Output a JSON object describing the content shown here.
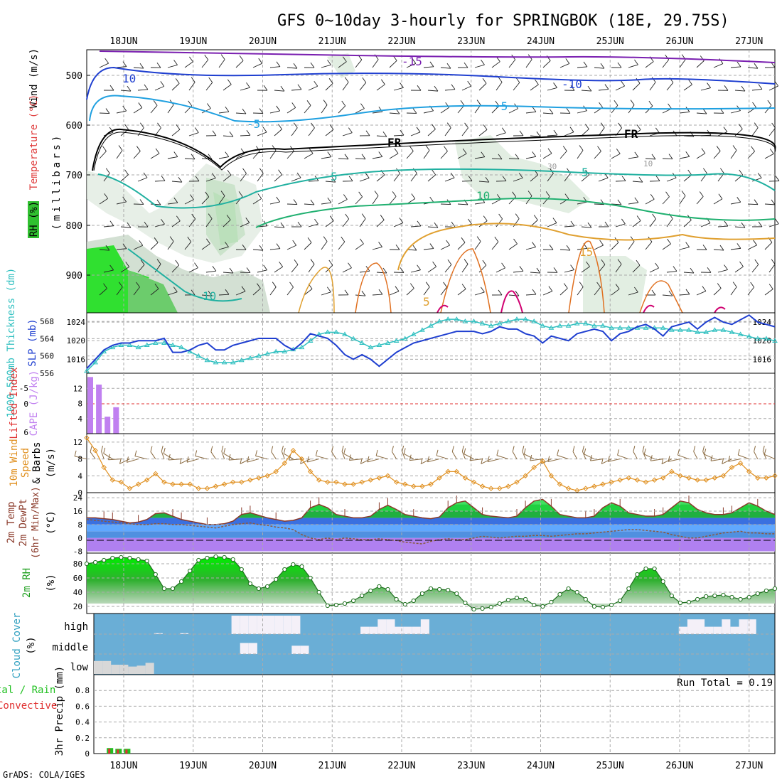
{
  "title": "GFS 0~10day 3-hourly for SPRINGBOK (18E, 29.75S)",
  "credit": "GrADS: COLA/IGES",
  "dates": [
    "18JUN",
    "19JUN",
    "20JUN",
    "21JUN",
    "22JUN",
    "23JUN",
    "24JUN",
    "25JUN",
    "26JUN",
    "27JUN"
  ],
  "colors": {
    "grid": "#aaaaaa",
    "temp_cold": "#7a1fb0",
    "temp_blue": "#1f3fd0",
    "temp_lightblue": "#1fa0e0",
    "temp_teal": "#20b0a0",
    "temp_green": "#20b070",
    "temp_orange": "#e0a030",
    "temp_dark_orange": "#e07020",
    "temp_red": "#d00070",
    "freezing": "#000000",
    "slp": "#1f3fd0",
    "thickness": "#30c0c0",
    "cape": "#c080f0",
    "lifted": "#e03030",
    "wind10": "#e09020",
    "barb": "#8a6a40",
    "rh_green": "#20c020",
    "cloud_bg": "#6aaed6",
    "cloud_fill": "#f4f0f8"
  },
  "panels": {
    "profile": {
      "ylabels": [
        {
          "text": "Wind (m/s)",
          "color": "#000000"
        },
        {
          "text": "Temperature (°C)",
          "color": "#e04040"
        },
        {
          "text": "RH (%)",
          "color": "#20a020"
        }
      ],
      "axis_unit": "(millibars)",
      "yticks": [
        "500",
        "600",
        "700",
        "800",
        "900"
      ],
      "contour_labels": [
        {
          "text": "-15",
          "color": "#7a1fb0"
        },
        {
          "text": "10",
          "color": "#1f3fd0"
        },
        {
          "text": "-10",
          "color": "#1f3fd0"
        },
        {
          "text": "-5",
          "color": "#1fa0e0"
        },
        {
          "text": "-5",
          "color": "#1fa0e0"
        },
        {
          "text": "FR",
          "color": "#000000"
        },
        {
          "text": "FR",
          "color": "#000000"
        },
        {
          "text": "5",
          "color": "#20b0a0"
        },
        {
          "text": "5",
          "color": "#20b0a0"
        },
        {
          "text": "10",
          "color": "#20b070"
        },
        {
          "text": "10",
          "color": "#20b0a0"
        },
        {
          "text": "15",
          "color": "#e0a030"
        },
        {
          "text": "5",
          "color": "#e0a030"
        },
        {
          "text": "30",
          "color": "#999999"
        },
        {
          "text": "10",
          "color": "#999999"
        }
      ]
    },
    "slp": {
      "ylabel_left": "1000-500mb Thickness (dm)",
      "ylabel_right": "SLP (mb)",
      "thickness_ticks": [
        "568",
        "564",
        "560",
        "556"
      ],
      "slp_ticks": [
        "1024",
        "1020",
        "1016"
      ]
    },
    "cape": {
      "ylabel_left": "Lifted Index",
      "ylabel_right": "CAPE (J/kg)",
      "li_ticks": [
        "-5",
        "0",
        "6"
      ],
      "cape_ticks": [
        "12",
        "8",
        "4"
      ],
      "li_extra_ticks": [
        "4",
        "4"
      ]
    },
    "wind": {
      "ylabel": "10m Wind Speed & Barbs",
      "unit": "(m/s)",
      "yticks": [
        "12",
        "8",
        "4",
        "0"
      ]
    },
    "temp": {
      "ylabel": "2m Temp 2m DewPt (6hr Min/Max)",
      "unit": "(°C)",
      "yticks": [
        "24",
        "16",
        "8",
        "0",
        "-8"
      ]
    },
    "rh": {
      "ylabel": "2m RH",
      "unit": "(%)",
      "yticks": [
        "80",
        "60",
        "40",
        "20"
      ]
    },
    "cloud": {
      "ylabel": "Cloud Cover",
      "unit": "(%)",
      "levels": [
        "high",
        "middle",
        "low"
      ]
    },
    "precip": {
      "ylabel_left": "tal / Rain",
      "ylabel_left2": "Convective",
      "ylabel": "3hr Precip (mm)",
      "yticks": [
        "0.8",
        "0.6",
        "0.4",
        "0.2",
        "0"
      ],
      "run_total": "Run Total = 0.19"
    }
  },
  "chart_data": [
    {
      "type": "line",
      "name": "sea level pressure",
      "unit": "mb",
      "ylim": [
        1013,
        1026
      ],
      "x": [
        0,
        1,
        2,
        3,
        4,
        5,
        6,
        7,
        8,
        9,
        10,
        11,
        12,
        13,
        14,
        15,
        16,
        17,
        18,
        19,
        20,
        21,
        22,
        23,
        24,
        25,
        26,
        27,
        28,
        29,
        30,
        31,
        32,
        33,
        34,
        35,
        36,
        37,
        38,
        39,
        40,
        41,
        42,
        43,
        44,
        45,
        46,
        47,
        48,
        49,
        50,
        51,
        52,
        53,
        54,
        55,
        56,
        57,
        58,
        59,
        60,
        61,
        62,
        63,
        64,
        65,
        66,
        67,
        68,
        69,
        70,
        71,
        72,
        73,
        74,
        75,
        76,
        77,
        78,
        79,
        80
      ],
      "values": [
        1014,
        1016,
        1018,
        1019,
        1019.5,
        1019.5,
        1020,
        1020,
        1020,
        1020.5,
        1017.5,
        1017.5,
        1018,
        1019,
        1019.5,
        1018,
        1018,
        1019,
        1019.5,
        1020,
        1020.5,
        1020.5,
        1020.5,
        1019,
        1018,
        1019.5,
        1021.5,
        1021,
        1020.5,
        1019,
        1017,
        1016,
        1017,
        1016,
        1014.5,
        1016,
        1017.5,
        1018.5,
        1019.5,
        1020,
        1020.5,
        1021,
        1021.5,
        1022,
        1022,
        1022,
        1021.5,
        1022,
        1023,
        1022.5,
        1022.5,
        1021.5,
        1021,
        1019.5,
        1021,
        1020.5,
        1020,
        1021.5,
        1022,
        1022.5,
        1022,
        1020,
        1021.5,
        1022,
        1023,
        1023.5,
        1022.5,
        1021,
        1023,
        1023.5,
        1024,
        1022.5,
        1024,
        1025,
        1024,
        1023.5,
        1024.5,
        1025.5,
        1024,
        1023.5,
        1023
      ]
    },
    {
      "type": "line",
      "name": "1000-500mb thickness",
      "unit": "dm",
      "ylim": [
        556,
        570
      ],
      "x": [
        0,
        1,
        2,
        3,
        4,
        5,
        6,
        7,
        8,
        9,
        10,
        11,
        12,
        13,
        14,
        15,
        16,
        17,
        18,
        19,
        20,
        21,
        22,
        23,
        24,
        25,
        26,
        27,
        28,
        29,
        30,
        31,
        32,
        33,
        34,
        35,
        36,
        37,
        38,
        39,
        40,
        41,
        42,
        43,
        44,
        45,
        46,
        47,
        48,
        49,
        50,
        51,
        52,
        53,
        54,
        55,
        56,
        57,
        58,
        59,
        60,
        61,
        62,
        63,
        64,
        65,
        66,
        67,
        68,
        69,
        70,
        71,
        72,
        73,
        74,
        75,
        76,
        77,
        78,
        79,
        80
      ],
      "values": [
        556.5,
        558.5,
        561,
        562,
        562.5,
        562.5,
        562,
        562.5,
        563,
        563,
        562.5,
        562,
        561,
        560,
        559,
        558.5,
        558.5,
        558.5,
        559,
        559.5,
        560,
        560.5,
        561,
        561,
        561.5,
        562,
        563.5,
        565,
        565.5,
        565.5,
        565,
        564,
        563,
        562,
        562.5,
        563,
        563.5,
        564,
        565,
        566,
        567,
        568,
        568.5,
        568.5,
        568,
        568,
        567.5,
        567,
        567.5,
        568,
        568.5,
        568.5,
        568,
        567,
        566.5,
        567,
        567,
        567.5,
        567.5,
        567,
        567,
        566.5,
        566.5,
        566.5,
        566.5,
        566.5,
        566.5,
        566.5,
        566,
        566,
        566,
        565.5,
        565.5,
        566,
        566,
        565.5,
        565,
        564.5,
        564,
        564,
        563.5
      ]
    },
    {
      "type": "bar",
      "name": "CAPE",
      "unit": "J/kg",
      "ylim": [
        0,
        16
      ],
      "x": [
        0,
        1,
        2,
        3
      ],
      "values": [
        15,
        13,
        4.5,
        7
      ]
    },
    {
      "type": "line",
      "name": "10m wind speed",
      "unit": "m/s",
      "ylim": [
        0,
        14
      ],
      "x": [
        0,
        1,
        2,
        3,
        4,
        5,
        6,
        7,
        8,
        9,
        10,
        11,
        12,
        13,
        14,
        15,
        16,
        17,
        18,
        19,
        20,
        21,
        22,
        23,
        24,
        25,
        26,
        27,
        28,
        29,
        30,
        31,
        32,
        33,
        34,
        35,
        36,
        37,
        38,
        39,
        40,
        41,
        42,
        43,
        44,
        45,
        46,
        47,
        48,
        49,
        50,
        51,
        52,
        53,
        54,
        55,
        56,
        57,
        58,
        59,
        60,
        61,
        62,
        63,
        64,
        65,
        66,
        67,
        68,
        69,
        70,
        71,
        72,
        73,
        74,
        75,
        76,
        77,
        78,
        79,
        80
      ],
      "values": [
        13,
        10,
        6,
        3,
        2.5,
        1,
        2,
        3,
        4.5,
        2.5,
        2,
        2,
        2,
        1,
        1,
        1.5,
        2,
        2.5,
        2.5,
        3,
        3.5,
        4,
        5,
        7,
        10,
        8,
        5,
        3,
        2.5,
        2.5,
        2,
        2,
        2.5,
        3,
        3.5,
        4,
        2.5,
        2,
        1.5,
        1.5,
        2,
        3.5,
        5,
        5,
        3.5,
        2.5,
        1.5,
        1,
        1,
        1.5,
        2.5,
        4,
        6,
        7.5,
        4,
        2,
        1,
        0.5,
        1,
        1.5,
        2,
        2.5,
        3,
        3.5,
        3,
        2.5,
        3,
        3.5,
        5,
        4,
        3.5,
        3,
        3,
        3.5,
        4,
        6,
        7,
        5,
        3.5,
        3.5,
        4
      ]
    },
    {
      "type": "area",
      "name": "2m temperature",
      "unit": "°C",
      "ylim": [
        -9,
        27
      ],
      "x": [
        0,
        1,
        2,
        3,
        4,
        5,
        6,
        7,
        8,
        9,
        10,
        11,
        12,
        13,
        14,
        15,
        16,
        17,
        18,
        19,
        20,
        21,
        22,
        23,
        24,
        25,
        26,
        27,
        28,
        29,
        30,
        31,
        32,
        33,
        34,
        35,
        36,
        37,
        38,
        39,
        40,
        41,
        42,
        43,
        44,
        45,
        46,
        47,
        48,
        49,
        50,
        51,
        52,
        53,
        54,
        55,
        56,
        57,
        58,
        59,
        60,
        61,
        62,
        63,
        64,
        65,
        66,
        67,
        68,
        69,
        70,
        71,
        72,
        73,
        74,
        75,
        76,
        77,
        78,
        79,
        80
      ],
      "values": [
        12,
        12,
        11.5,
        11,
        10,
        9,
        9.5,
        11,
        14.5,
        15,
        13,
        11,
        10,
        9,
        8,
        8,
        8.5,
        10,
        14,
        15,
        13.5,
        12,
        11,
        10,
        10.5,
        12,
        18,
        20,
        18,
        14,
        13,
        12,
        12,
        13,
        17,
        19.5,
        17,
        14,
        13,
        12,
        11.5,
        12.5,
        18,
        21,
        22,
        18,
        14,
        13,
        12.5,
        12,
        13,
        18,
        22,
        23,
        19,
        14,
        13,
        12,
        12,
        13,
        18,
        21,
        19,
        15,
        14,
        13,
        13,
        14,
        18,
        22,
        21,
        17,
        15,
        14,
        14,
        15,
        18,
        21,
        19,
        16,
        14
      ]
    },
    {
      "type": "line",
      "name": "2m dew point",
      "unit": "°C",
      "ylim": [
        -9,
        27
      ],
      "x": [
        0,
        1,
        2,
        3,
        4,
        5,
        6,
        7,
        8,
        9,
        10,
        11,
        12,
        13,
        14,
        15,
        16,
        17,
        18,
        19,
        20,
        21,
        22,
        23,
        24,
        25,
        26,
        27,
        28,
        29,
        30,
        31,
        32,
        33,
        34,
        35,
        36,
        37,
        38,
        39,
        40,
        41,
        42,
        43,
        44,
        45,
        46,
        47,
        48,
        49,
        50,
        51,
        52,
        53,
        54,
        55,
        56,
        57,
        58,
        59,
        60,
        61,
        62,
        63,
        64,
        65,
        66,
        67,
        68,
        69,
        70,
        71,
        72,
        73,
        74,
        75,
        76,
        77,
        78,
        79,
        80
      ],
      "values": [
        11,
        10.5,
        10,
        9.5,
        9,
        8.5,
        8,
        8,
        8.5,
        8.5,
        8,
        8,
        7.5,
        7,
        6.5,
        6,
        7,
        8,
        8.5,
        9,
        8,
        7.5,
        6.5,
        6,
        5,
        2,
        0,
        -1,
        0,
        -1,
        0,
        -0.5,
        -1,
        -1,
        -0.5,
        -1,
        -1.5,
        -2.5,
        -3,
        -3.5,
        -2,
        -1,
        -0.5,
        -1,
        -1,
        0,
        1,
        0.5,
        0,
        0.5,
        1,
        1,
        1.5,
        1.5,
        1,
        1.5,
        2,
        2.5,
        2.5,
        3,
        3.5,
        4,
        4.5,
        5,
        5,
        4.5,
        4,
        3.5,
        2,
        1,
        0,
        0,
        1,
        2,
        3,
        3.5,
        4,
        3,
        3,
        2.5,
        2.5
      ]
    },
    {
      "type": "area",
      "name": "2m relative humidity",
      "unit": "%",
      "ylim": [
        10,
        95
      ],
      "x": [
        0,
        1,
        2,
        3,
        4,
        5,
        6,
        7,
        8,
        9,
        10,
        11,
        12,
        13,
        14,
        15,
        16,
        17,
        18,
        19,
        20,
        21,
        22,
        23,
        24,
        25,
        26,
        27,
        28,
        29,
        30,
        31,
        32,
        33,
        34,
        35,
        36,
        37,
        38,
        39,
        40,
        41,
        42,
        43,
        44,
        45,
        46,
        47,
        48,
        49,
        50,
        51,
        52,
        53,
        54,
        55,
        56,
        57,
        58,
        59,
        60,
        61,
        62,
        63,
        64,
        65,
        66,
        67,
        68,
        69,
        70,
        71,
        72,
        73,
        74,
        75,
        76,
        77,
        78,
        79,
        80
      ],
      "values": [
        80,
        82,
        85,
        88,
        89,
        88,
        86,
        84,
        65,
        45,
        45,
        55,
        70,
        85,
        88,
        90,
        89,
        86,
        72,
        52,
        45,
        48,
        58,
        72,
        79,
        76,
        60,
        40,
        21,
        22,
        24,
        28,
        35,
        42,
        48,
        44,
        30,
        23,
        28,
        38,
        45,
        44,
        43,
        38,
        25,
        16,
        17,
        19,
        24,
        29,
        32,
        30,
        22,
        20,
        26,
        37,
        45,
        40,
        30,
        20,
        19,
        22,
        28,
        45,
        65,
        73,
        73,
        55,
        35,
        25,
        26,
        30,
        34,
        35,
        36,
        33,
        30,
        33,
        38,
        42,
        45
      ]
    },
    {
      "type": "bar",
      "name": "cloud cover high",
      "unit": "%",
      "ylim": [
        0,
        100
      ],
      "x": [
        7,
        10,
        16,
        17,
        18,
        19,
        20,
        21,
        22,
        23,
        31,
        32,
        33,
        34,
        35,
        36,
        37,
        38,
        68,
        69,
        70,
        71,
        72,
        73,
        74,
        75,
        76
      ],
      "values": [
        5,
        5,
        100,
        100,
        100,
        100,
        100,
        100,
        100,
        100,
        40,
        40,
        80,
        80,
        40,
        40,
        40,
        80,
        40,
        80,
        80,
        40,
        40,
        80,
        40,
        80,
        80
      ]
    },
    {
      "type": "bar",
      "name": "cloud cover middle",
      "unit": "%",
      "ylim": [
        0,
        100
      ],
      "x": [
        17,
        18,
        23,
        24
      ],
      "values": [
        60,
        60,
        45,
        45
      ]
    },
    {
      "type": "bar",
      "name": "cloud cover low",
      "unit": "%",
      "ylim": [
        0,
        100
      ],
      "x": [
        0,
        1,
        2,
        3,
        4,
        5,
        6
      ],
      "values": [
        70,
        70,
        50,
        50,
        40,
        45,
        60
      ]
    },
    {
      "type": "bar",
      "name": "3hr precip",
      "unit": "mm",
      "ylim": [
        0,
        1
      ],
      "x": [
        2,
        3,
        4
      ],
      "values": [
        0.07,
        0.06,
        0.06
      ]
    }
  ]
}
